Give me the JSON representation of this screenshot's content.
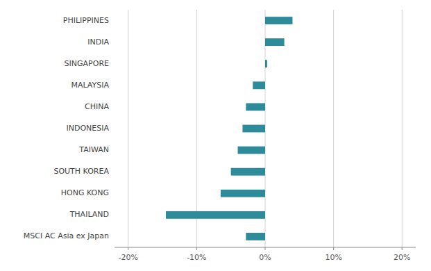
{
  "chart_data": {
    "type": "bar",
    "orientation": "horizontal",
    "categories": [
      "MSCI AC Asia ex Japan",
      "THAILAND",
      "HONG KONG",
      "SOUTH KOREA",
      "TAIWAN",
      "INDONESIA",
      "CHINA",
      "MALAYSIA",
      "SINGAPORE",
      "INDIA",
      "PHILIPPINES"
    ],
    "values": [
      -2.8,
      -14.5,
      -6.5,
      -5.0,
      -4.0,
      -3.3,
      -2.8,
      -1.8,
      0.3,
      2.8,
      4.0
    ],
    "color": "#2e8b9a",
    "xlim": [
      -22,
      22
    ],
    "xticks": [
      {
        "value": -20,
        "label": "-20%"
      },
      {
        "value": -10,
        "label": "-10%"
      },
      {
        "value": 0,
        "label": "0%"
      },
      {
        "value": 10,
        "label": "10%"
      },
      {
        "value": 20,
        "label": "20%"
      }
    ],
    "grid": true
  }
}
